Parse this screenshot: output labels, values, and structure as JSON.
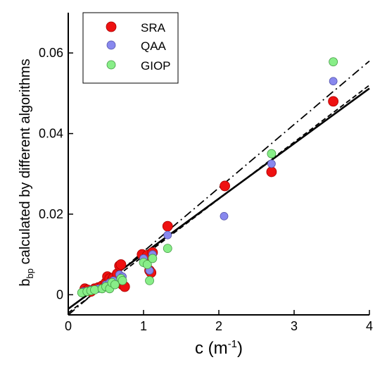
{
  "chart_data": {
    "type": "scatter",
    "title": "",
    "xlabel": "c (m",
    "xlabel_sup": "-1",
    "xlabel_suffix": ")",
    "ylabel": "b",
    "ylabel_sub": "bp",
    "ylabel_rest": " calculated by different algorithms",
    "xlim": [
      0,
      4
    ],
    "ylim": [
      -0.005,
      0.07
    ],
    "xticks": [
      "0",
      "1",
      "2",
      "3",
      "4"
    ],
    "yticks": [
      "0",
      "0.02",
      "0.04",
      "0.06"
    ],
    "grid": false,
    "legend_position": "top-left",
    "series": [
      {
        "name": "SRA",
        "color": "#ee1111",
        "points": [
          [
            0.22,
            0.0015
          ],
          [
            0.26,
            0.0012
          ],
          [
            0.3,
            0.0008
          ],
          [
            0.35,
            0.0015
          ],
          [
            0.4,
            0.0018
          ],
          [
            0.45,
            0.0022
          ],
          [
            0.5,
            0.003
          ],
          [
            0.52,
            0.0045
          ],
          [
            0.55,
            0.004
          ],
          [
            0.58,
            0.0035
          ],
          [
            0.6,
            0.0042
          ],
          [
            0.65,
            0.0052
          ],
          [
            0.68,
            0.0072
          ],
          [
            0.7,
            0.0075
          ],
          [
            0.72,
            0.0025
          ],
          [
            0.75,
            0.002
          ],
          [
            0.98,
            0.01
          ],
          [
            1.05,
            0.0098
          ],
          [
            1.08,
            0.006
          ],
          [
            1.1,
            0.0055
          ],
          [
            1.12,
            0.0105
          ],
          [
            1.32,
            0.017
          ],
          [
            2.08,
            0.027
          ],
          [
            2.7,
            0.0305
          ],
          [
            3.52,
            0.048
          ]
        ]
      },
      {
        "name": "QAA",
        "color": "#8888ee",
        "points": [
          [
            0.2,
            0.0008
          ],
          [
            0.3,
            0.0012
          ],
          [
            0.4,
            0.0015
          ],
          [
            0.5,
            0.0025
          ],
          [
            0.55,
            0.003
          ],
          [
            0.6,
            0.0035
          ],
          [
            0.68,
            0.005
          ],
          [
            0.72,
            0.0045
          ],
          [
            1.0,
            0.009
          ],
          [
            1.08,
            0.006
          ],
          [
            1.12,
            0.01
          ],
          [
            1.32,
            0.0148
          ],
          [
            2.07,
            0.0195
          ],
          [
            2.7,
            0.0325
          ],
          [
            3.52,
            0.053
          ]
        ]
      },
      {
        "name": "GIOP",
        "color": "#88ee88",
        "points": [
          [
            0.18,
            0.0005
          ],
          [
            0.25,
            0.0008
          ],
          [
            0.3,
            0.001
          ],
          [
            0.35,
            0.0012
          ],
          [
            0.45,
            0.0015
          ],
          [
            0.5,
            0.002
          ],
          [
            0.55,
            0.0015
          ],
          [
            0.58,
            0.003
          ],
          [
            0.62,
            0.0025
          ],
          [
            0.7,
            0.004
          ],
          [
            0.72,
            0.0035
          ],
          [
            1.0,
            0.008
          ],
          [
            1.05,
            0.0075
          ],
          [
            1.08,
            0.0035
          ],
          [
            1.12,
            0.009
          ],
          [
            1.32,
            0.0115
          ],
          [
            2.7,
            0.035
          ],
          [
            3.52,
            0.0578
          ]
        ]
      }
    ],
    "lines": [
      {
        "style": "solid",
        "from": [
          0,
          -0.0035
        ],
        "to": [
          4,
          0.0512
        ]
      },
      {
        "style": "dash",
        "from": [
          0,
          -0.0045
        ],
        "to": [
          4,
          0.052
        ]
      },
      {
        "style": "dash-dot",
        "from": [
          0,
          -0.005
        ],
        "to": [
          4,
          0.058
        ]
      }
    ]
  }
}
